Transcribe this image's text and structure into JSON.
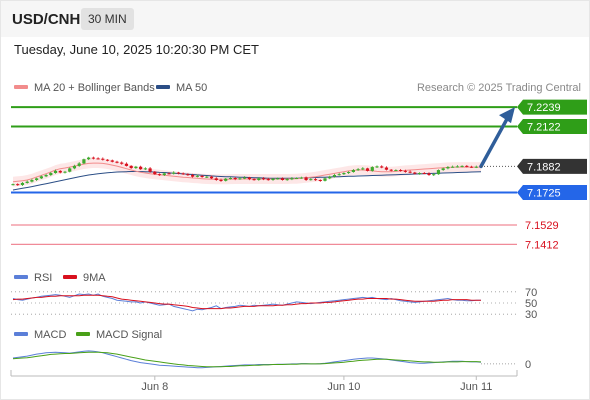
{
  "header": {
    "symbol": "USD/CNH",
    "interval": "30 MIN"
  },
  "timestamp": "Tuesday, June 10, 2025 10:20:30 PM CET",
  "legend": {
    "ma20": "MA 20 + Bollinger Bands",
    "ma50": "MA 50",
    "rsi": "RSI",
    "rsi_ma": "9MA",
    "macd": "MACD",
    "macd_signal": "MACD Signal"
  },
  "source": "Research © 2025 Trading Central",
  "colors": {
    "up": "#3daa2e",
    "down": "#d8101e",
    "green_level": "#2f9e18",
    "blue_level": "#2466e8",
    "red_level": "#f08a98",
    "price_tag": "#333333",
    "arrow": "#2f5e9a",
    "ma20": "#f28c8c",
    "ma50": "#2b4e86",
    "rsi": "#5b7fd8",
    "rsi_ma": "#d8101e",
    "macd": "#5b7fd8",
    "macd_signal": "#49a018",
    "band_fill": "#fde3e3"
  },
  "chart_data": [
    {
      "type": "candlestick",
      "title": "USD/CNH",
      "interval": "30 MIN",
      "ylim": [
        7.13,
        7.23
      ],
      "x_ticks": [
        "Jun 8",
        "Jun 10",
        "Jun 11"
      ],
      "current_price": "7.1882",
      "levels": [
        {
          "value": 7.2239,
          "label": "7.2239",
          "style": "resistance-tag"
        },
        {
          "value": 7.2122,
          "label": "7.2122",
          "style": "resistance-tag"
        },
        {
          "value": 7.1725,
          "label": "7.1725",
          "style": "pivot-tag"
        },
        {
          "value": 7.1529,
          "label": "7.1529",
          "style": "support-text"
        },
        {
          "value": 7.1412,
          "label": "7.1412",
          "style": "support-text"
        }
      ],
      "projection": {
        "from": 7.1882,
        "to": 7.2239
      },
      "closes": [
        7.1775,
        7.177,
        7.1782,
        7.179,
        7.18,
        7.181,
        7.1822,
        7.183,
        7.1842,
        7.1855,
        7.1845,
        7.185,
        7.187,
        7.1885,
        7.19,
        7.1925,
        7.1935,
        7.193,
        7.1928,
        7.1922,
        7.1918,
        7.191,
        7.1905,
        7.1898,
        7.1885,
        7.1872,
        7.188,
        7.1865,
        7.187,
        7.185,
        7.1835,
        7.183,
        7.184,
        7.1838,
        7.1845,
        7.184,
        7.1835,
        7.183,
        7.182,
        7.1825,
        7.1818,
        7.182,
        7.181,
        7.18,
        7.1795,
        7.1808,
        7.1812,
        7.1805,
        7.181,
        7.1815,
        7.1805,
        7.18,
        7.181,
        7.1805,
        7.18,
        7.1808,
        7.181,
        7.18,
        7.1805,
        7.181,
        7.1812,
        7.1815,
        7.18,
        7.1805,
        7.18,
        7.1795,
        7.181,
        7.182,
        7.183,
        7.1835,
        7.1842,
        7.1848,
        7.186,
        7.1865,
        7.187,
        7.1855,
        7.1878,
        7.1882,
        7.1875,
        7.1862,
        7.1858,
        7.186,
        7.1855,
        7.185,
        7.1845,
        7.1838,
        7.1842,
        7.184,
        7.183,
        7.1835,
        7.186,
        7.187,
        7.1878,
        7.188,
        7.1882,
        7.1885,
        7.188,
        7.1878,
        7.188,
        7.1882
      ],
      "ma20": [
        7.179,
        7.1792,
        7.1795,
        7.18,
        7.1808,
        7.1818,
        7.1828,
        7.1838,
        7.1848,
        7.186,
        7.1868,
        7.1872,
        7.1878,
        7.1884,
        7.189,
        7.1896,
        7.19,
        7.1902,
        7.1902,
        7.19,
        7.1896,
        7.189,
        7.1884,
        7.1876,
        7.1868,
        7.186,
        7.1853,
        7.1847,
        7.1842,
        7.1838,
        7.1835,
        7.1832,
        7.1829,
        7.1826,
        7.1823,
        7.182,
        7.1817,
        7.1815,
        7.1812,
        7.181,
        7.1808,
        7.1806,
        7.1805,
        7.1804,
        7.1804,
        7.1804,
        7.1805,
        7.1806,
        7.1806,
        7.1806,
        7.1806,
        7.1806,
        7.1806,
        7.1806,
        7.1806,
        7.1806,
        7.1806,
        7.1806,
        7.1806,
        7.1807,
        7.1808,
        7.181,
        7.1813,
        7.1816,
        7.182,
        7.1825,
        7.183,
        7.1835,
        7.184,
        7.1845,
        7.185,
        7.1855,
        7.1858,
        7.186,
        7.186,
        7.1858,
        7.1855,
        7.1852,
        7.185,
        7.185,
        7.185,
        7.1852,
        7.1855,
        7.1858,
        7.186,
        7.1862,
        7.1864,
        7.1866,
        7.1868,
        7.187,
        7.1872,
        7.1874,
        7.1876,
        7.1877,
        7.1878,
        7.1878,
        7.1878,
        7.1878,
        7.1878,
        7.1878
      ],
      "ma50": [
        7.174,
        7.1745,
        7.175,
        7.1755,
        7.176,
        7.1766,
        7.1772,
        7.1778,
        7.1784,
        7.179,
        7.1796,
        7.1802,
        7.1808,
        7.1814,
        7.182,
        7.1825,
        7.183,
        7.1834,
        7.1838,
        7.1841,
        7.1844,
        7.1846,
        7.1848,
        7.1849,
        7.185,
        7.1851,
        7.1851,
        7.1851,
        7.185,
        7.1849,
        7.1848,
        7.1846,
        7.1845,
        7.1843,
        7.1841,
        7.1839,
        7.1837,
        7.1835,
        7.1833,
        7.1831,
        7.1829,
        7.1827,
        7.1825,
        7.1823,
        7.1821,
        7.182,
        7.1819,
        7.1818,
        7.1817,
        7.1816,
        7.1815,
        7.1814,
        7.1813,
        7.1812,
        7.1811,
        7.181,
        7.181,
        7.181,
        7.181,
        7.181,
        7.1811,
        7.1812,
        7.1813,
        7.1814,
        7.1815,
        7.1816,
        7.1817,
        7.1818,
        7.1819,
        7.182,
        7.1821,
        7.1822,
        7.1823,
        7.1824,
        7.1825,
        7.1826,
        7.1827,
        7.1828,
        7.1829,
        7.183,
        7.1831,
        7.1832,
        7.1833,
        7.1834,
        7.1835,
        7.1836,
        7.1837,
        7.1838,
        7.1839,
        7.184,
        7.1841,
        7.1842,
        7.1843,
        7.1844,
        7.1845,
        7.1846,
        7.1847,
        7.1848,
        7.1849,
        7.185
      ],
      "band_width": 0.003
    },
    {
      "type": "line",
      "title": "RSI",
      "ylim": [
        25,
        75
      ],
      "y_ticks": [
        "70",
        "50",
        "30"
      ],
      "series": [
        {
          "name": "RSI",
          "values": [
            58,
            56,
            55,
            57,
            59,
            60,
            62,
            63,
            64,
            65,
            64,
            62,
            60,
            63,
            66,
            65,
            66,
            64,
            66,
            62,
            60,
            58,
            55,
            54,
            53,
            52,
            52,
            50,
            52,
            50,
            48,
            46,
            47,
            48,
            44,
            42,
            40,
            38,
            36,
            39,
            38,
            40,
            42,
            45,
            40,
            42,
            43,
            44,
            46,
            45,
            44,
            46,
            45,
            46,
            47,
            48,
            47,
            46,
            48,
            50,
            52,
            51,
            50,
            49,
            50,
            51,
            52,
            53,
            54,
            55,
            56,
            57,
            58,
            59,
            60,
            59,
            60,
            58,
            57,
            56,
            58,
            56,
            54,
            53,
            52,
            51,
            52,
            53,
            54,
            55,
            56,
            57,
            58,
            56,
            55,
            55,
            54,
            54,
            55,
            55
          ]
        },
        {
          "name": "9MA",
          "values": [
            56,
            57,
            57,
            58,
            59,
            60,
            60,
            61,
            62,
            62,
            63,
            63,
            63,
            63,
            63,
            64,
            64,
            64,
            64,
            63,
            62,
            61,
            59,
            57,
            56,
            55,
            54,
            53,
            52,
            51,
            50,
            49,
            48,
            48,
            47,
            46,
            45,
            44,
            42,
            41,
            40,
            40,
            40,
            40,
            40,
            41,
            41,
            42,
            43,
            44,
            44,
            44,
            45,
            45,
            45,
            45,
            46,
            46,
            47,
            47,
            48,
            49,
            49,
            50,
            50,
            50,
            51,
            51,
            52,
            53,
            54,
            55,
            56,
            57,
            57,
            58,
            58,
            58,
            58,
            58,
            57,
            57,
            56,
            55,
            54,
            53,
            53,
            53,
            53,
            53,
            54,
            55,
            55,
            56,
            56,
            56,
            56,
            55,
            55,
            55
          ]
        }
      ]
    },
    {
      "type": "line",
      "title": "MACD",
      "ylim": [
        -0.0025,
        0.0055
      ],
      "y_ticks": [
        "0"
      ],
      "series": [
        {
          "name": "MACD",
          "values": [
            0.0018,
            0.002,
            0.0022,
            0.0024,
            0.0027,
            0.003,
            0.0032,
            0.0034,
            0.0035,
            0.0036,
            0.0035,
            0.0034,
            0.0033,
            0.0035,
            0.0037,
            0.0039,
            0.004,
            0.0039,
            0.0037,
            0.0034,
            0.003,
            0.0026,
            0.0022,
            0.0018,
            0.0014,
            0.001,
            0.0007,
            0.0004,
            0.0002,
            0.0,
            -0.0002,
            -0.0004,
            -0.0005,
            -0.0006,
            -0.0007,
            -0.0008,
            -0.0009,
            -0.001,
            -0.0011,
            -0.0012,
            -0.0012,
            -0.0011,
            -0.001,
            -0.0009,
            -0.0008,
            -0.0007,
            -0.0006,
            -0.0005,
            -0.0004,
            -0.0003,
            -0.0003,
            -0.0003,
            -0.0002,
            -0.0002,
            -0.0002,
            -0.0002,
            -0.0001,
            -0.0001,
            -0.0001,
            0.0,
            0.0,
            0.0001,
            0.0001,
            0.0,
            0.0,
            0.0001,
            0.0002,
            0.0004,
            0.0006,
            0.0008,
            0.001,
            0.0012,
            0.0014,
            0.0016,
            0.0017,
            0.0018,
            0.0018,
            0.0017,
            0.0016,
            0.0014,
            0.0012,
            0.001,
            0.0008,
            0.0006,
            0.0004,
            0.0003,
            0.0002,
            0.0002,
            0.0003,
            0.0004,
            0.0005,
            0.0006,
            0.0007,
            0.0008,
            0.0008,
            0.0008,
            0.0007,
            0.0006,
            0.0006,
            0.0005
          ]
        },
        {
          "name": "MACD Signal",
          "values": [
            0.0016,
            0.0017,
            0.0018,
            0.0019,
            0.0021,
            0.0023,
            0.0025,
            0.0027,
            0.0029,
            0.003,
            0.0031,
            0.0032,
            0.0032,
            0.0033,
            0.0034,
            0.0035,
            0.0036,
            0.0036,
            0.0036,
            0.0035,
            0.0034,
            0.0032,
            0.003,
            0.0027,
            0.0024,
            0.0021,
            0.0018,
            0.0015,
            0.0012,
            0.001,
            0.0008,
            0.0006,
            0.0004,
            0.0002,
            0.0,
            -0.0002,
            -0.0003,
            -0.0005,
            -0.0006,
            -0.0007,
            -0.0008,
            -0.0009,
            -0.0009,
            -0.0009,
            -0.0009,
            -0.0008,
            -0.0008,
            -0.0007,
            -0.0006,
            -0.0006,
            -0.0005,
            -0.0004,
            -0.0004,
            -0.0003,
            -0.0003,
            -0.0002,
            -0.0002,
            -0.0002,
            -0.0001,
            -0.0001,
            -0.0001,
            0.0,
            0.0,
            0.0,
            0.0,
            0.0,
            0.0001,
            0.0002,
            0.0003,
            0.0004,
            0.0005,
            0.0007,
            0.0008,
            0.001,
            0.0011,
            0.0012,
            0.0013,
            0.0014,
            0.0014,
            0.0014,
            0.0013,
            0.0012,
            0.0011,
            0.001,
            0.0009,
            0.0008,
            0.0007,
            0.0006,
            0.0006,
            0.0005,
            0.0005,
            0.0005,
            0.0006,
            0.0006,
            0.0006,
            0.0007,
            0.0007,
            0.0007,
            0.0007,
            0.0006
          ]
        }
      ]
    }
  ]
}
